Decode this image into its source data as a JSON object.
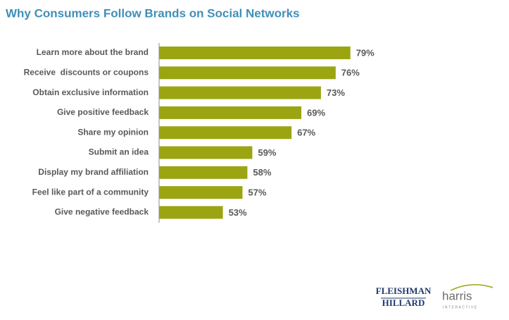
{
  "chart_data": {
    "type": "hbar",
    "title": "Why Consumers Follow Brands on Social Networks",
    "categories": [
      "Learn more about the brand",
      "Receive  discounts or coupons",
      "Obtain exclusive information",
      "Give positive feedback",
      "Share my opinion",
      "Submit an idea",
      "Display my brand affiliation",
      "Feel like part of a community",
      "Give negative feedback"
    ],
    "values": [
      79,
      76,
      73,
      69,
      67,
      59,
      58,
      57,
      53
    ],
    "value_labels": [
      "79%",
      "76%",
      "73%",
      "69%",
      "67%",
      "59%",
      "58%",
      "57%",
      "53%"
    ],
    "color": "#9ba512",
    "xlim": [
      40,
      100
    ]
  },
  "footer": {
    "logos": [
      "FLEISHMAN",
      "HILLARD",
      "harris",
      "INTERACTIVE"
    ]
  }
}
